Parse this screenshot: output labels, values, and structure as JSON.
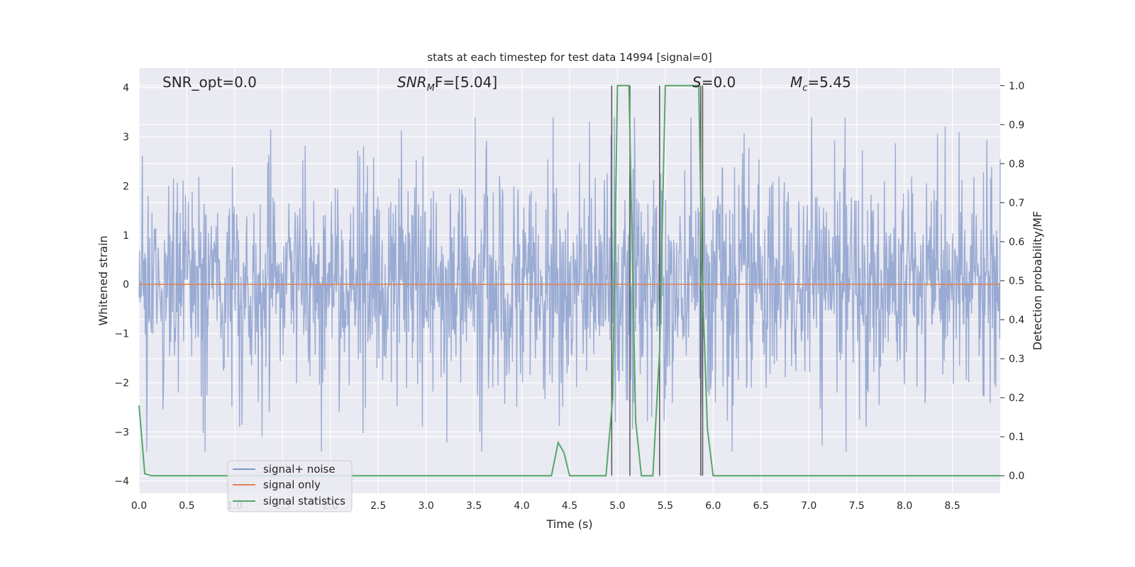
{
  "chart_data": {
    "type": "line",
    "title": "stats at each timestep for test data 14994 [signal=0]",
    "xlabel": "Time (s)",
    "ylabel_left": "Whitened strain",
    "ylabel_right": "Detection probability/MF",
    "xlim": [
      0,
      9.0
    ],
    "ylim_left": [
      -4.25,
      4.4
    ],
    "ylim_right": [
      -0.045,
      1.045
    ],
    "x_ticks": [
      "0.0",
      "0.5",
      "1.0",
      "1.5",
      "2.0",
      "2.5",
      "3.0",
      "3.5",
      "4.0",
      "4.5",
      "5.0",
      "5.5",
      "6.0",
      "6.5",
      "7.0",
      "7.5",
      "8.0",
      "8.5"
    ],
    "y_ticks_left": [
      "4",
      "3",
      "2",
      "1",
      "0",
      "−1",
      "−2",
      "−3",
      "−4"
    ],
    "y_ticks_right": [
      "1.0",
      "0.9",
      "0.8",
      "0.7",
      "0.6",
      "0.5",
      "0.4",
      "0.3",
      "0.2",
      "0.1",
      "0.0"
    ],
    "grid": true,
    "legend_position": "lower-left",
    "annotations": {
      "snr_opt": "SNR_opt=0.0",
      "snr_mf": "SNR",
      "snr_mf_sub": "M",
      "snr_mf_rest": "F=[5.04]",
      "s_label": "S",
      "s_value": "=0.0",
      "mc_label": "M",
      "mc_sub": "c",
      "mc_value": "=5.45"
    },
    "series": [
      {
        "name": "signal+ noise",
        "color": "#7f96c8",
        "description_of_envelope": "dense whitened noise between about -3.4 and 3.4",
        "x_range": [
          0,
          9.0
        ],
        "y_range": [
          -3.4,
          3.4
        ]
      },
      {
        "name": "signal only",
        "color": "#dd8452",
        "x": [
          0,
          9.0
        ],
        "y": [
          0,
          0
        ]
      },
      {
        "name": "signal statistics",
        "color": "#55a868",
        "axis": "right",
        "x": [
          0.0,
          0.06,
          0.13,
          0.5,
          1.0,
          2.0,
          3.0,
          4.0,
          4.31,
          4.38,
          4.44,
          4.5,
          4.6,
          4.8,
          4.88,
          4.95,
          5.0,
          5.06,
          5.12,
          5.19,
          5.25,
          5.37,
          5.44,
          5.5,
          5.6,
          5.85,
          5.88,
          5.94,
          6.0,
          6.5,
          7.0,
          8.0,
          9.0
        ],
        "y": [
          0.18,
          0.005,
          0.0,
          0.0,
          0.0,
          0.0,
          0.0,
          0.0,
          0.0,
          0.085,
          0.06,
          0.0,
          0.0,
          0.0,
          0.0,
          0.2,
          1.0,
          1.0,
          1.0,
          0.14,
          0.0,
          0.0,
          0.32,
          1.0,
          1.0,
          1.0,
          0.55,
          0.12,
          0.0,
          0.0,
          0.0,
          0.0,
          0.0
        ]
      }
    ],
    "vertical_lines": [
      4.94,
      5.13,
      5.44,
      5.87,
      5.89
    ]
  }
}
